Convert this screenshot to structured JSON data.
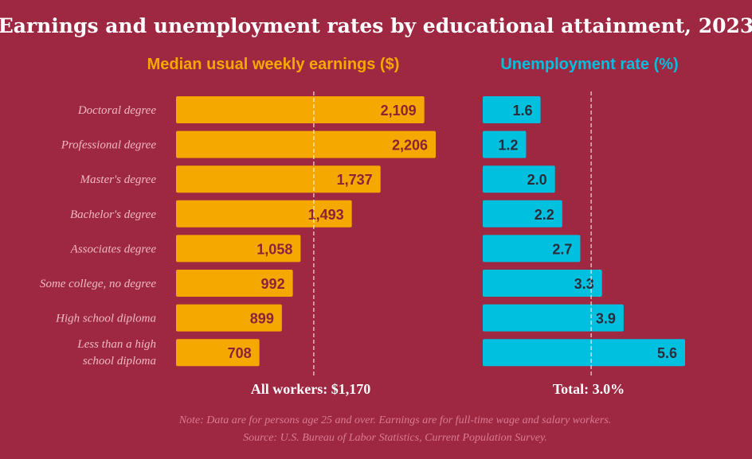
{
  "title": "Earnings and unemployment rates by educational attainment, 2023",
  "colors": {
    "background": "#9e2842",
    "earnings_bar": "#f5a800",
    "earnings_label": "#8a2238",
    "unemployment_bar": "#00c0e0",
    "unemployment_label": "#2c2c3a",
    "category_text": "#f0b8c4",
    "note_text": "#d97a93"
  },
  "chart_data": [
    {
      "type": "bar",
      "orientation": "horizontal",
      "title": "Median usual weekly earnings ($)",
      "categories": [
        "Doctoral degree",
        "Professional degree",
        "Master's degree",
        "Bachelor's degree",
        "Associates degree",
        "Some college, no degree",
        "High school diploma",
        "Less than a high school diploma"
      ],
      "values": [
        2109,
        2206,
        1737,
        1493,
        1058,
        992,
        899,
        708
      ],
      "value_labels": [
        "2,109",
        "2,206",
        "1,737",
        "1,493",
        "1,058",
        "992",
        "899",
        "708"
      ],
      "xlim": [
        0,
        2206
      ],
      "reference": {
        "value": 1170,
        "label": "All workers: $1,170"
      }
    },
    {
      "type": "bar",
      "orientation": "horizontal",
      "title": "Unemployment rate (%)",
      "categories": [
        "Doctoral degree",
        "Professional degree",
        "Master's degree",
        "Bachelor's degree",
        "Associates degree",
        "Some college, no degree",
        "High school diploma",
        "Less than a high school diploma"
      ],
      "values": [
        1.6,
        1.2,
        2.0,
        2.2,
        2.7,
        3.3,
        3.9,
        5.6
      ],
      "value_labels": [
        "1.6",
        "1.2",
        "2.0",
        "2.2",
        "2.7",
        "3.3",
        "3.9",
        "5.6"
      ],
      "xlim": [
        0,
        5.6
      ],
      "reference": {
        "value": 3.0,
        "label": "Total: 3.0%"
      }
    }
  ],
  "category_display": [
    [
      "Doctoral degree"
    ],
    [
      "Professional degree"
    ],
    [
      "Master's degree"
    ],
    [
      "Bachelor's degree"
    ],
    [
      "Associates degree"
    ],
    [
      "Some college, no degree"
    ],
    [
      "High school diploma"
    ],
    [
      "Less than a high",
      "school diploma"
    ]
  ],
  "notes": [
    "Note: Data are for persons age 25 and over. Earnings are for full-time wage and salary workers.",
    "Source: U.S. Bureau of Labor Statistics, Current Population Survey."
  ]
}
